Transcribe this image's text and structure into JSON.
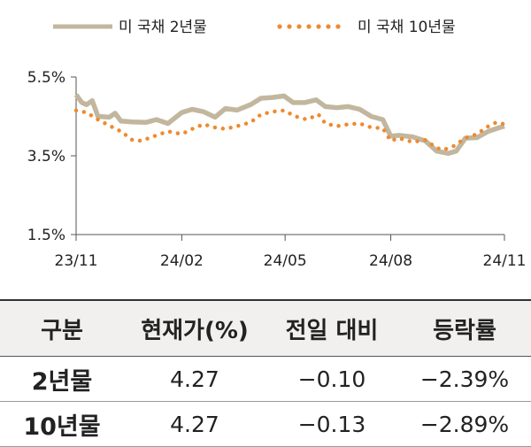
{
  "chart_data": {
    "type": "line",
    "x_ticks": [
      "23/11",
      "24/02",
      "24/05",
      "24/08",
      "24/11"
    ],
    "y_ticks": [
      "5.5%",
      "3.5%",
      "1.5%"
    ],
    "ylim": [
      1.5,
      5.5
    ],
    "xlim": [
      "2023-11-01",
      "2024-11-08"
    ],
    "series": [
      {
        "name": "미 국채 2년물",
        "style": "solid",
        "color": "#c2b79e",
        "points": [
          [
            "2023-11-01",
            5.05
          ],
          [
            "2023-11-06",
            4.85
          ],
          [
            "2023-11-10",
            4.8
          ],
          [
            "2023-11-15",
            4.9
          ],
          [
            "2023-11-20",
            4.5
          ],
          [
            "2023-11-30",
            4.48
          ],
          [
            "2023-12-05",
            4.58
          ],
          [
            "2023-12-10",
            4.38
          ],
          [
            "2023-12-20",
            4.36
          ],
          [
            "2024-01-01",
            4.35
          ],
          [
            "2024-01-10",
            4.42
          ],
          [
            "2024-01-20",
            4.32
          ],
          [
            "2024-02-01",
            4.6
          ],
          [
            "2024-02-10",
            4.68
          ],
          [
            "2024-02-20",
            4.62
          ],
          [
            "2024-03-01",
            4.48
          ],
          [
            "2024-03-10",
            4.7
          ],
          [
            "2024-03-20",
            4.66
          ],
          [
            "2024-04-01",
            4.8
          ],
          [
            "2024-04-10",
            4.96
          ],
          [
            "2024-04-20",
            4.98
          ],
          [
            "2024-04-30",
            5.02
          ],
          [
            "2024-05-08",
            4.85
          ],
          [
            "2024-05-18",
            4.85
          ],
          [
            "2024-05-28",
            4.92
          ],
          [
            "2024-06-05",
            4.75
          ],
          [
            "2024-06-15",
            4.72
          ],
          [
            "2024-06-25",
            4.75
          ],
          [
            "2024-07-05",
            4.68
          ],
          [
            "2024-07-15",
            4.5
          ],
          [
            "2024-07-25",
            4.42
          ],
          [
            "2024-08-01",
            4.0
          ],
          [
            "2024-08-08",
            4.02
          ],
          [
            "2024-08-20",
            3.98
          ],
          [
            "2024-08-31",
            3.88
          ],
          [
            "2024-09-10",
            3.62
          ],
          [
            "2024-09-20",
            3.56
          ],
          [
            "2024-09-27",
            3.62
          ],
          [
            "2024-10-05",
            3.95
          ],
          [
            "2024-10-15",
            3.96
          ],
          [
            "2024-10-25",
            4.12
          ],
          [
            "2024-11-04",
            4.22
          ],
          [
            "2024-11-08",
            4.25
          ]
        ]
      },
      {
        "name": "미 국채 10년물",
        "style": "dotted",
        "color": "#ee8a30",
        "points": [
          [
            "2023-11-01",
            4.65
          ],
          [
            "2023-11-10",
            4.6
          ],
          [
            "2023-11-20",
            4.42
          ],
          [
            "2023-12-01",
            4.25
          ],
          [
            "2023-12-10",
            4.12
          ],
          [
            "2023-12-20",
            3.9
          ],
          [
            "2023-12-28",
            3.88
          ],
          [
            "2024-01-10",
            4.02
          ],
          [
            "2024-01-20",
            4.12
          ],
          [
            "2024-02-01",
            4.05
          ],
          [
            "2024-02-10",
            4.18
          ],
          [
            "2024-02-20",
            4.3
          ],
          [
            "2024-03-01",
            4.22
          ],
          [
            "2024-03-10",
            4.18
          ],
          [
            "2024-03-20",
            4.25
          ],
          [
            "2024-04-01",
            4.35
          ],
          [
            "2024-04-10",
            4.55
          ],
          [
            "2024-04-20",
            4.62
          ],
          [
            "2024-04-30",
            4.65
          ],
          [
            "2024-05-10",
            4.5
          ],
          [
            "2024-05-20",
            4.42
          ],
          [
            "2024-05-30",
            4.55
          ],
          [
            "2024-06-05",
            4.32
          ],
          [
            "2024-06-15",
            4.25
          ],
          [
            "2024-06-25",
            4.3
          ],
          [
            "2024-07-05",
            4.32
          ],
          [
            "2024-07-15",
            4.22
          ],
          [
            "2024-07-25",
            4.2
          ],
          [
            "2024-08-01",
            3.88
          ],
          [
            "2024-08-08",
            3.95
          ],
          [
            "2024-08-20",
            3.85
          ],
          [
            "2024-08-31",
            3.9
          ],
          [
            "2024-09-10",
            3.7
          ],
          [
            "2024-09-16",
            3.65
          ],
          [
            "2024-09-25",
            3.75
          ],
          [
            "2024-10-05",
            3.95
          ],
          [
            "2024-10-15",
            4.05
          ],
          [
            "2024-10-25",
            4.25
          ],
          [
            "2024-11-01",
            4.35
          ],
          [
            "2024-11-08",
            4.3
          ]
        ]
      }
    ]
  },
  "table": {
    "headers": [
      "구분",
      "현재가(%)",
      "전일 대비",
      "등락률"
    ],
    "rows": [
      [
        "2년물",
        "4.27",
        "−0.10",
        "−2.39%"
      ],
      [
        "10년물",
        "4.27",
        "−0.13",
        "−2.89%"
      ]
    ]
  }
}
